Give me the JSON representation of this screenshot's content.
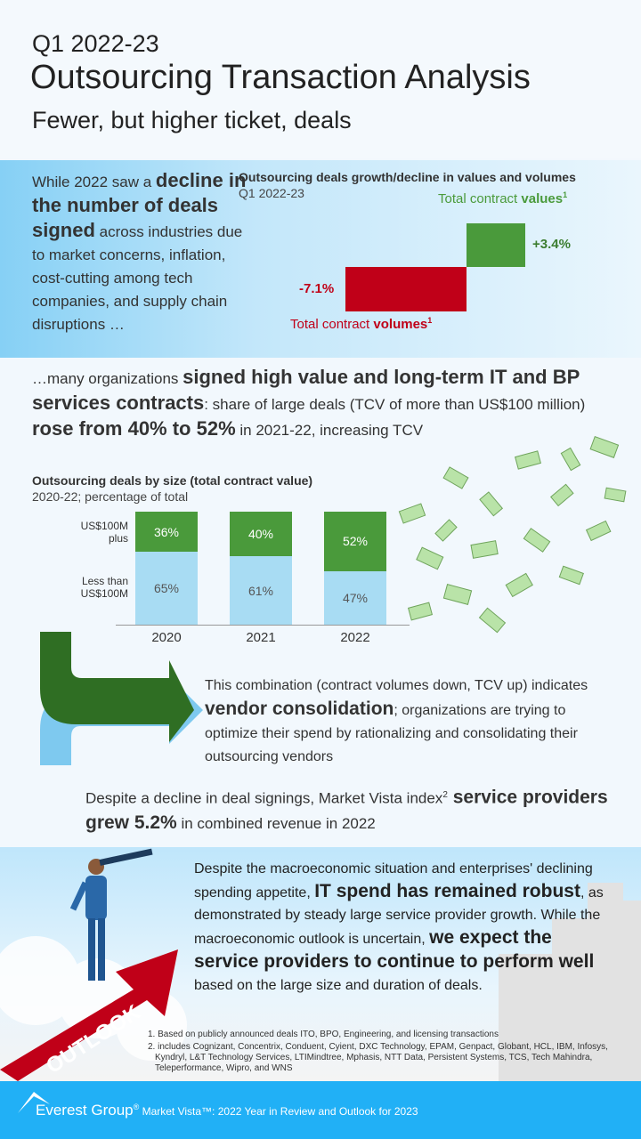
{
  "header": {
    "period": "Q1 2022-23",
    "title": "Outsourcing Transaction Analysis",
    "subtitle": "Fewer, but higher ticket, deals"
  },
  "intro": {
    "t1": "While 2022 saw a ",
    "b1": "decline in the number of deals signed",
    "t2": " across industries due to market concerns, inflation, cost-cutting among tech companies, and supply chain disruptions …"
  },
  "mid": {
    "t1": "…many organizations ",
    "b1": "signed high value and long-term IT and BP services contracts",
    "t2": ": share of large deals (TCV of more than US$100 million) ",
    "b2": "rose from 40%  to 52%",
    "t3": "  in 2021-22, increasing TCV"
  },
  "consolidation": {
    "t1": "This combination (contract volumes down, TCV up) indicates ",
    "b1": "vendor consolidation",
    "t2": "; organizations are trying to optimize their spend by rationalizing and consolidating their outsourcing vendors"
  },
  "growth": {
    "t1": "Despite a decline in deal signings, Market Vista index",
    "sup": "2",
    "b1": " service providers grew 5.2%",
    "t2": " in combined revenue in 2022"
  },
  "outlook": {
    "badge": "OUTLOOK",
    "t1": "Despite the macroeconomic situation and enterprises' declining spending appetite, ",
    "b1": "IT spend has remained robust",
    "t2": ", as demonstrated by steady large service provider growth.  While the macroeconomic outlook is uncertain, ",
    "b2": "we expect the service providers to continue to perform well",
    "t3": " based on the large size and duration of deals."
  },
  "notes": [
    "1. Based on publicly announced deals ITO,  BPO,  Engineering,  and licensing transactions",
    "2. includes Cognizant, Concentrix, Conduent, Cyient, DXC Technology, EPAM, Genpact, Globant, HCL, IBM, Infosys, Kyndryl, L&T Technology Services, LTIMindtree, Mphasis, NTT Data, Persistent Systems, TCS, Tech Mahindra, Teleperformance, Wipro, and WNS"
  ],
  "footer": {
    "brand": "Everest Group",
    "reg": "®",
    "text": " Market Vista™: 2022 Year in Review and Outlook for 2023"
  },
  "colors": {
    "green": "#4a9a3b",
    "red": "#c00018",
    "lightblue": "#a8dcf3",
    "footer": "#21b0f6"
  },
  "chart_data": [
    {
      "type": "bar",
      "title": "Outsourcing deals growth/decline in values and volumes",
      "subtitle": "Q1 2022-23",
      "categories": [
        "Total contract volumes",
        "Total contract values"
      ],
      "values": [
        -7.1,
        3.4
      ],
      "labels": [
        "-7.1%",
        "+3.4%"
      ],
      "cat_prefix": "Total contract ",
      "cat_bold": [
        "volumes",
        "values"
      ],
      "sup": "1"
    },
    {
      "type": "bar",
      "stacked": true,
      "title": "Outsourcing deals by size (total contract value)",
      "subtitle": "2020-22; percentage of total",
      "categories": [
        "2020",
        "2021",
        "2022"
      ],
      "series": [
        {
          "name": "US$100M plus",
          "values": [
            36,
            40,
            52
          ]
        },
        {
          "name": "Less than US$100M",
          "values": [
            65,
            61,
            47
          ]
        }
      ],
      "series_labels": [
        "US$100M plus",
        "Less than US$100M"
      ]
    }
  ]
}
